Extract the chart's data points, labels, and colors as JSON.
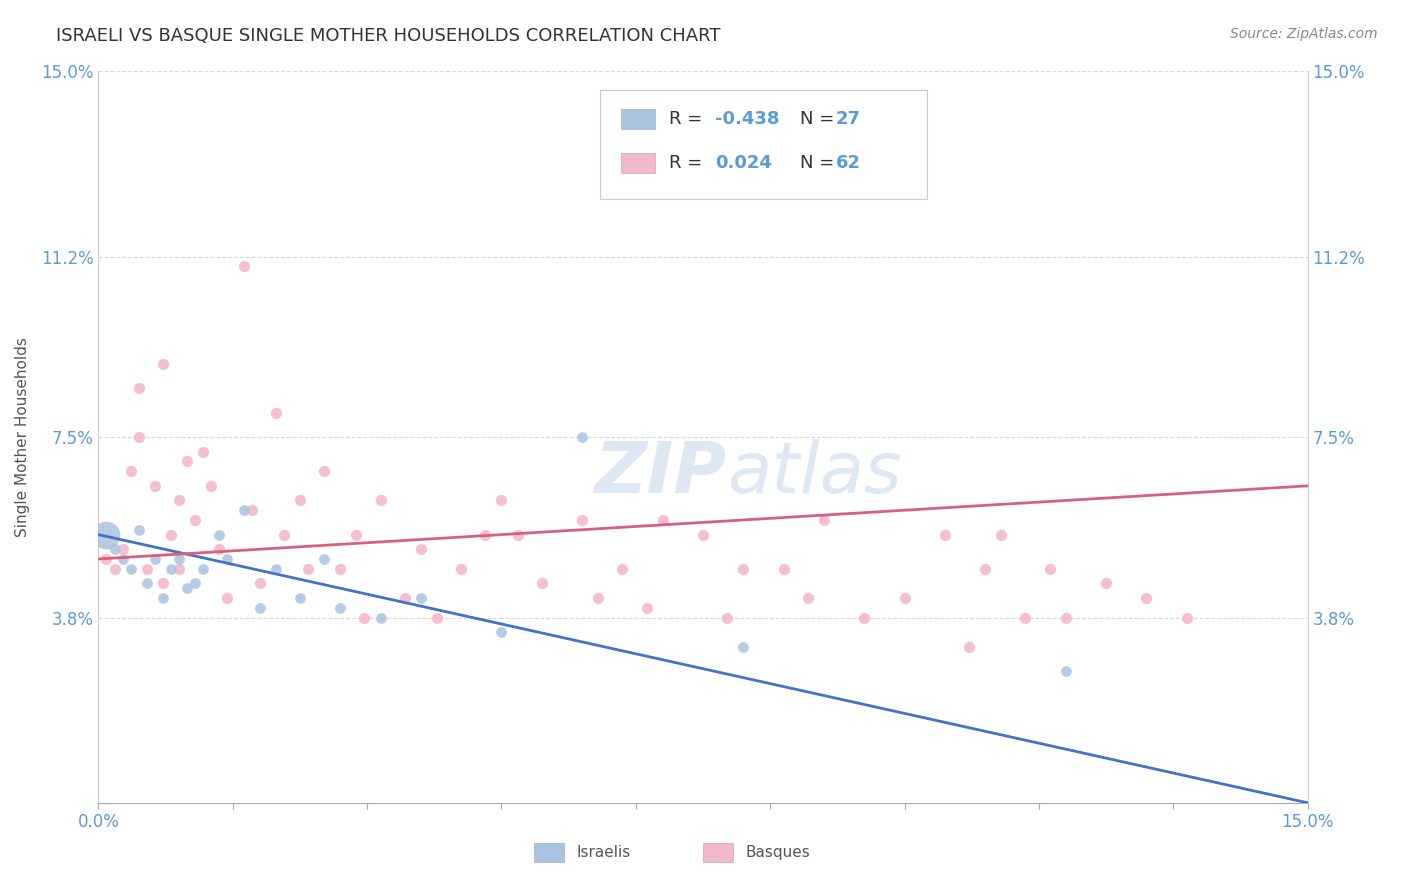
{
  "title": "ISRAELI VS BASQUE SINGLE MOTHER HOUSEHOLDS CORRELATION CHART",
  "source": "Source: ZipAtlas.com",
  "ylabel": "Single Mother Households",
  "xlim": [
    0.0,
    0.15
  ],
  "ylim": [
    0.0,
    0.15
  ],
  "xtick_positions": [
    0.0,
    0.0167,
    0.0333,
    0.05,
    0.0667,
    0.0833,
    0.1,
    0.1167,
    0.1333,
    0.15
  ],
  "ytick_positions": [
    0.038,
    0.075,
    0.112,
    0.15
  ],
  "ytick_labels": [
    "3.8%",
    "7.5%",
    "11.2%",
    "15.0%"
  ],
  "xtick_end_labels": [
    "0.0%",
    "15.0%"
  ],
  "israeli_color": "#a8c4e0",
  "basque_color": "#f4b8cb",
  "israeli_line_color": "#4472c4",
  "basque_line_color": "#d9607a",
  "title_color": "#333333",
  "source_color": "#888888",
  "axis_label_color": "#555555",
  "tick_label_color": "#5b9bd5",
  "legend_text_color": "#333333",
  "legend_rval_color": "#5b9bd5",
  "background_color": "#ffffff",
  "grid_color": "#d8d8d8",
  "watermark_color": "#c8d8ee",
  "israelis_x": [
    0.001,
    0.002,
    0.003,
    0.004,
    0.005,
    0.006,
    0.007,
    0.008,
    0.009,
    0.01,
    0.011,
    0.012,
    0.013,
    0.015,
    0.016,
    0.018,
    0.02,
    0.022,
    0.025,
    0.028,
    0.03,
    0.035,
    0.04,
    0.05,
    0.06,
    0.08,
    0.12
  ],
  "israelis_y": [
    0.055,
    0.052,
    0.05,
    0.048,
    0.056,
    0.045,
    0.05,
    0.042,
    0.048,
    0.05,
    0.044,
    0.045,
    0.048,
    0.055,
    0.05,
    0.06,
    0.04,
    0.048,
    0.042,
    0.05,
    0.04,
    0.038,
    0.042,
    0.035,
    0.075,
    0.032,
    0.027
  ],
  "israelis_sizes": [
    400,
    60,
    60,
    60,
    60,
    60,
    60,
    60,
    60,
    60,
    60,
    60,
    60,
    60,
    60,
    60,
    60,
    60,
    60,
    60,
    60,
    60,
    60,
    60,
    60,
    60,
    60
  ],
  "basques_x": [
    0.001,
    0.002,
    0.003,
    0.004,
    0.005,
    0.005,
    0.006,
    0.007,
    0.008,
    0.008,
    0.009,
    0.01,
    0.01,
    0.011,
    0.012,
    0.013,
    0.014,
    0.015,
    0.016,
    0.018,
    0.019,
    0.02,
    0.022,
    0.023,
    0.025,
    0.026,
    0.028,
    0.03,
    0.032,
    0.033,
    0.035,
    0.038,
    0.04,
    0.042,
    0.045,
    0.048,
    0.05,
    0.052,
    0.055,
    0.06,
    0.062,
    0.065,
    0.068,
    0.07,
    0.075,
    0.078,
    0.08,
    0.085,
    0.088,
    0.09,
    0.095,
    0.1,
    0.105,
    0.108,
    0.11,
    0.112,
    0.115,
    0.118,
    0.12,
    0.125,
    0.13,
    0.135
  ],
  "basques_y": [
    0.05,
    0.048,
    0.052,
    0.068,
    0.075,
    0.085,
    0.048,
    0.065,
    0.045,
    0.09,
    0.055,
    0.048,
    0.062,
    0.07,
    0.058,
    0.072,
    0.065,
    0.052,
    0.042,
    0.11,
    0.06,
    0.045,
    0.08,
    0.055,
    0.062,
    0.048,
    0.068,
    0.048,
    0.055,
    0.038,
    0.062,
    0.042,
    0.052,
    0.038,
    0.048,
    0.055,
    0.062,
    0.055,
    0.045,
    0.058,
    0.042,
    0.048,
    0.04,
    0.058,
    0.055,
    0.038,
    0.048,
    0.048,
    0.042,
    0.058,
    0.038,
    0.042,
    0.055,
    0.032,
    0.048,
    0.055,
    0.038,
    0.048,
    0.038,
    0.045,
    0.042,
    0.038
  ],
  "israeli_line_x0": 0.0,
  "israeli_line_y0": 0.055,
  "israeli_line_x1": 0.15,
  "israeli_line_y1": 0.0,
  "basque_line_x0": 0.0,
  "basque_line_y0": 0.05,
  "basque_line_x1": 0.15,
  "basque_line_y1": 0.065,
  "legend_r1_label": "R = ",
  "legend_r1_value": "-0.438",
  "legend_n1_label": "N = ",
  "legend_n1_value": "27",
  "legend_r2_label": "R =  ",
  "legend_r2_value": "0.024",
  "legend_n2_label": "N = ",
  "legend_n2_value": "62",
  "bottom_label1": "Israelis",
  "bottom_label2": "Basques",
  "marker_size": 65,
  "title_fontsize": 13,
  "axis_label_fontsize": 11,
  "tick_fontsize": 12,
  "legend_fontsize": 13,
  "source_fontsize": 10
}
